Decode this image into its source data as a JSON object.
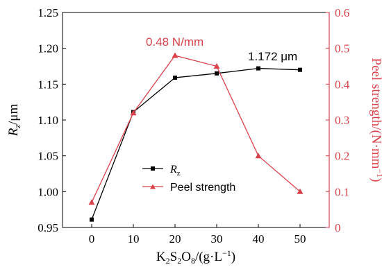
{
  "chart_data": {
    "type": "line",
    "x": [
      0,
      10,
      20,
      30,
      40,
      50
    ],
    "x_ticks": [
      "0",
      "10",
      "20",
      "30",
      "40",
      "50"
    ],
    "xlabel": {
      "pre": "K",
      "s1": "2",
      "mid1": "S",
      "s2": "2",
      "mid2": "O",
      "s3": "8",
      "mid3": "/(g·L",
      "sup": "−1",
      "post": ")"
    },
    "ylabel_left": {
      "main": "R",
      "sub": "z",
      "unit": "/μm"
    },
    "ylabel_right": {
      "main": "Peel strength/(N·mm",
      "sup": "−1",
      "post": ")"
    },
    "ylim_left": [
      0.95,
      1.25
    ],
    "ylim_right": [
      0,
      0.6
    ],
    "yticks_left": [
      "0.95",
      "1.00",
      "1.05",
      "1.10",
      "1.15",
      "1.20",
      "1.25"
    ],
    "yticks_right": [
      "0",
      "0.1",
      "0.2",
      "0.3",
      "0.4",
      "0.5",
      "0.6"
    ],
    "series": [
      {
        "name": "R",
        "name_sub": "z",
        "axis": "left",
        "marker": "square",
        "color": "#000000",
        "values": [
          0.961,
          1.111,
          1.159,
          1.165,
          1.172,
          1.17
        ]
      },
      {
        "name": "Peel strength",
        "axis": "right",
        "marker": "triangle",
        "color": "#d9414b",
        "values": [
          0.07,
          0.32,
          0.48,
          0.45,
          0.2,
          0.1
        ]
      }
    ],
    "annotations": [
      {
        "text": "0.48 N/mm",
        "color": "#d9414b",
        "near_x": 20,
        "series": 1
      },
      {
        "text": "1.172 μm",
        "color": "#000000",
        "near_x": 40,
        "series": 0
      }
    ],
    "legend_position": "center",
    "grid": false,
    "axis_colors": {
      "left": "#000000",
      "right": "#d9414b"
    }
  }
}
